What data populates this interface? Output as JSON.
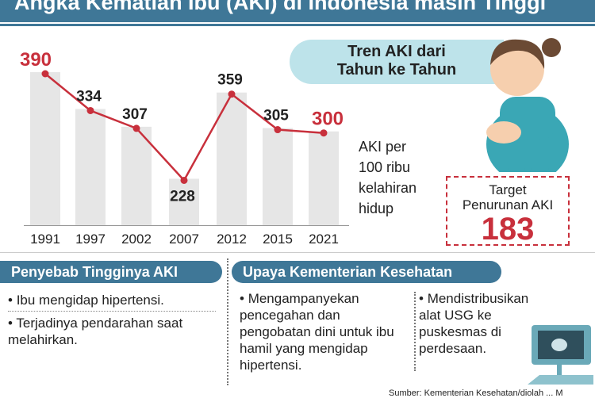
{
  "title": "Angka Kematian Ibu (AKI) di Indonesia masih Tinggi",
  "trend_label": [
    "Tren AKI dari",
    "Tahun ke Tahun"
  ],
  "unit_label": [
    "AKI per",
    "100 ribu",
    "kelahiran",
    "hidup"
  ],
  "target": {
    "label1": "Target",
    "label2": "Penurunan AKI",
    "value": "183"
  },
  "chart_data": {
    "type": "bar+line",
    "categories": [
      "1991",
      "1997",
      "2002",
      "2007",
      "2012",
      "2015",
      "2021"
    ],
    "values": [
      390,
      334,
      307,
      228,
      359,
      305,
      300
    ],
    "labels": [
      "390",
      "334",
      "307",
      "228",
      "359",
      "305",
      "300"
    ],
    "highlighted": [
      "1991",
      "2021"
    ],
    "colors": {
      "bar": "#e6e6e6",
      "line": "#c8303c",
      "highlight_label": "#c8303c",
      "label": "#222222"
    }
  },
  "causes": {
    "title": "Penyebab Tingginya AKI",
    "items": [
      "Ibu mengidap hipertensi.",
      "Terjadinya pendarahan saat melahirkan."
    ]
  },
  "efforts": {
    "title": "Upaya Kementerian Kesehatan",
    "items": [
      "Mengampanyekan pencegahan dan pengobatan dini untuk ibu hamil yang mengidap hipertensi.",
      "Mendistribusikan alat USG ke puskesmas di perdesaan."
    ]
  },
  "source": "Sumber: Kementerian Kesehatan/diolah ... M"
}
